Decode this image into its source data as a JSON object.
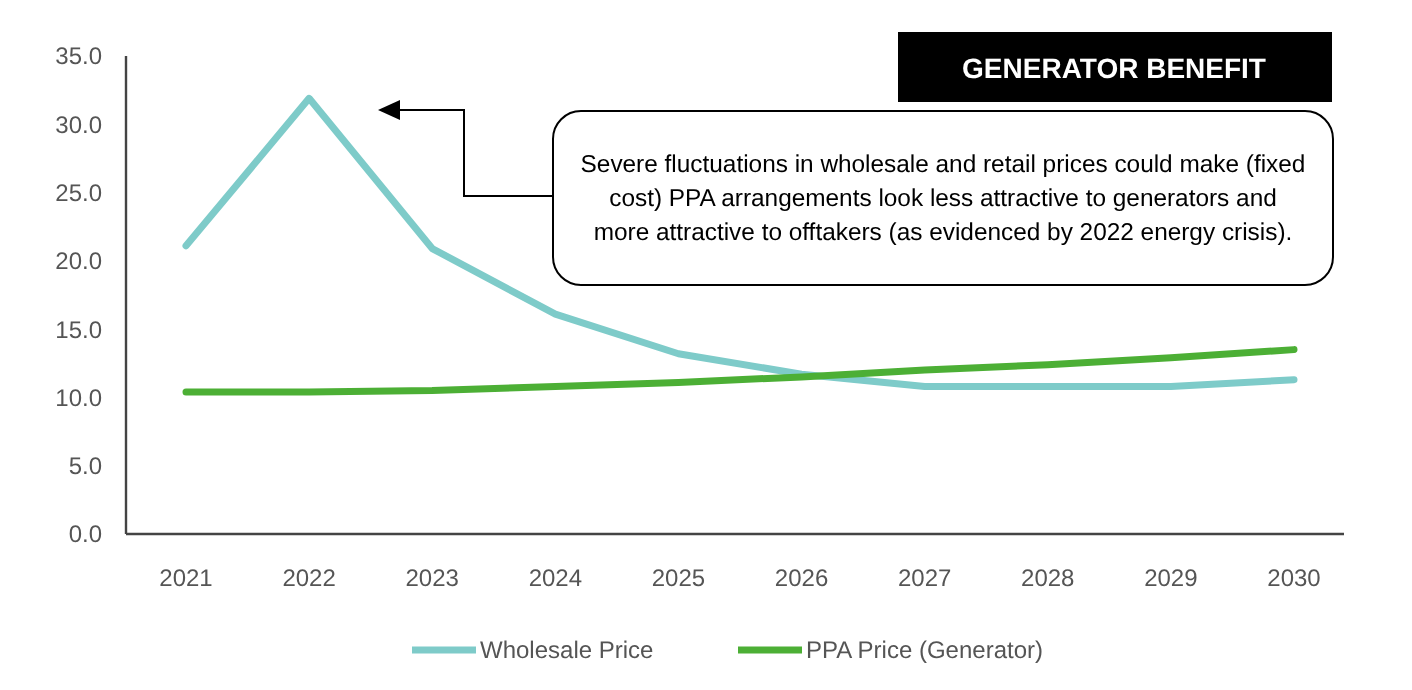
{
  "chart_data": {
    "type": "line",
    "title": "GENERATOR BENEFIT",
    "categories": [
      "2021",
      "2022",
      "2023",
      "2024",
      "2025",
      "2026",
      "2027",
      "2028",
      "2029",
      "2030"
    ],
    "series": [
      {
        "name": "Wholesale Price",
        "color": "#7ecbc9",
        "values": [
          21.1,
          31.9,
          20.9,
          16.1,
          13.2,
          11.7,
          10.8,
          10.8,
          10.8,
          11.3
        ]
      },
      {
        "name": "PPA Price (Generator)",
        "color": "#4caf35",
        "values": [
          10.4,
          10.4,
          10.5,
          10.8,
          11.1,
          11.5,
          12.0,
          12.4,
          12.9,
          13.5
        ]
      }
    ],
    "ylim": [
      0,
      35
    ],
    "yticks": [
      {
        "value": 0,
        "label": "0.0"
      },
      {
        "value": 5,
        "label": "5.0"
      },
      {
        "value": 10,
        "label": "10.0"
      },
      {
        "value": 15,
        "label": "15.0"
      },
      {
        "value": 20,
        "label": "20.0"
      },
      {
        "value": 25,
        "label": "25.0"
      },
      {
        "value": 30,
        "label": "30.0"
      },
      {
        "value": 35,
        "label": "35.0"
      }
    ],
    "grid": false,
    "legend": "bottom",
    "marker": "none",
    "line_style": "solid",
    "annotations": [
      "Severe fluctuations in wholesale and retail prices could make (fixed cost) PPA arrangements look less attractive to generators and more attractive to offtakers (as evidenced by 2022 energy crisis)."
    ]
  }
}
